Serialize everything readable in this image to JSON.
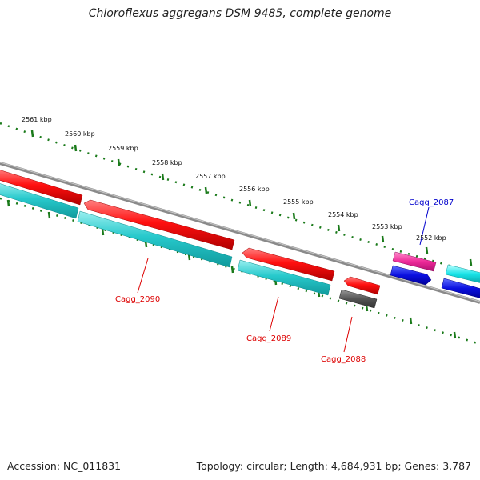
{
  "title": "Chloroflexus aggregans DSM 9485, complete genome",
  "footer": {
    "accession": "Accession: NC_011831",
    "summary": "Topology: circular; Length: 4,684,931 bp; Genes: 3,787"
  },
  "colors": {
    "backbone": "#888888",
    "tick": "#1a7a1a",
    "forward_gene": "#ee0000",
    "reverse_gene": "#22c4c8",
    "pseudo_gene": "#555555",
    "rna_gene": "#ee3399",
    "misc_gene": "#1111dd",
    "cyan_gene": "#11dddd",
    "label_red": "#dd0000",
    "label_blue": "#0000cc"
  },
  "ticks": [
    {
      "label": "2561 kbp"
    },
    {
      "label": "2560 kbp"
    },
    {
      "label": "2559 kbp"
    },
    {
      "label": "2558 kbp"
    },
    {
      "label": "2557 kbp"
    },
    {
      "label": "2556 kbp"
    },
    {
      "label": "2555 kbp"
    },
    {
      "label": "2554 kbp"
    },
    {
      "label": "2553 kbp"
    },
    {
      "label": "2552 kbp"
    }
  ],
  "gene_labels": [
    {
      "text": "Cagg_2090",
      "color": "label_red"
    },
    {
      "text": "Cagg_2089",
      "color": "label_red"
    },
    {
      "text": "Cagg_2088",
      "color": "label_red"
    },
    {
      "text": "Cagg_2087",
      "color": "label_blue"
    }
  ]
}
